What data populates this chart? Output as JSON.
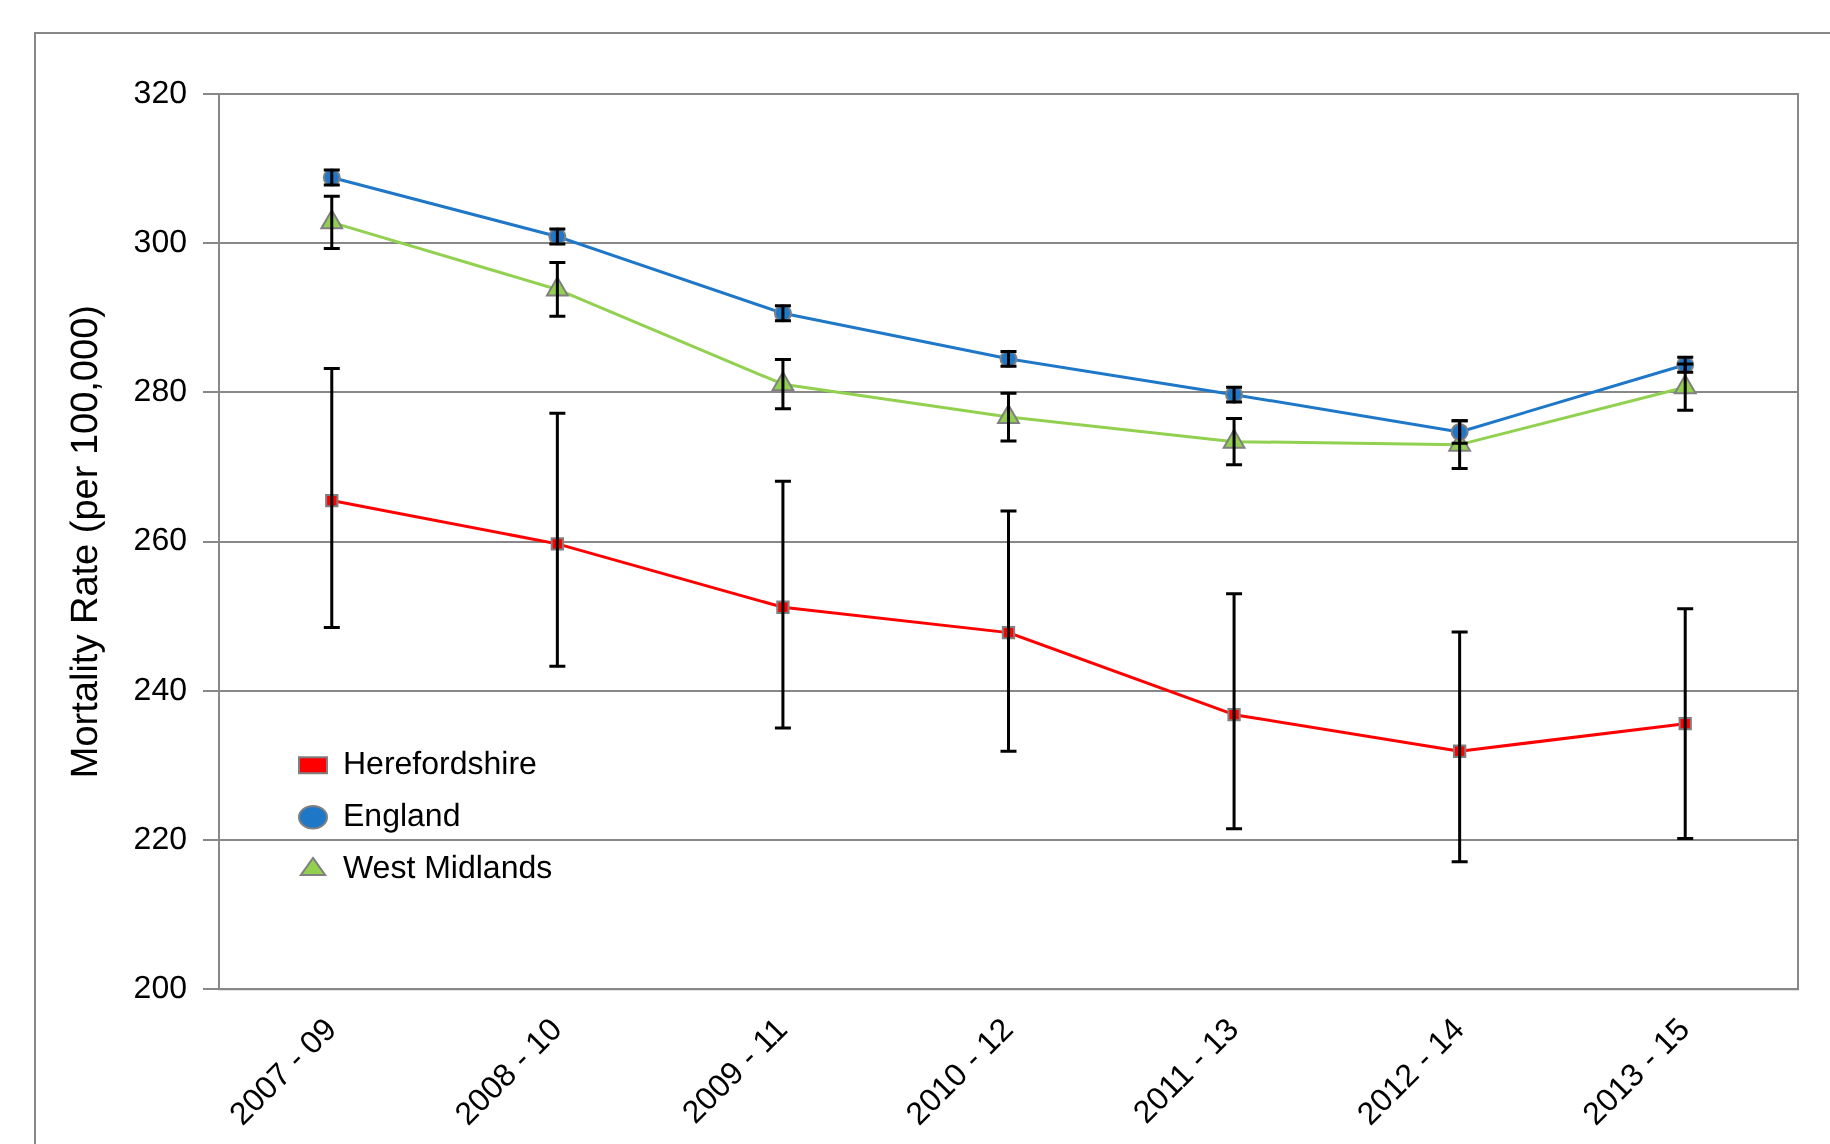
{
  "chart_data": {
    "type": "line",
    "ylabel": "Mortality Rate (per 100,000)",
    "categories": [
      "2007 - 09",
      "2008 - 10",
      "2009 - 11",
      "2010 - 12",
      "2011 - 13",
      "2012 - 14",
      "2013 - 15"
    ],
    "series": [
      {
        "name": "Herefordshire",
        "color": "#ff0000",
        "marker": "square",
        "values": [
          265.5,
          259.7,
          251.2,
          247.8,
          236.8,
          231.9,
          235.6
        ],
        "errors": [
          [
            248.5,
            283.2
          ],
          [
            243.3,
            277.2
          ],
          [
            235.0,
            268.1
          ],
          [
            231.9,
            264.1
          ],
          [
            221.5,
            253.0
          ],
          [
            217.1,
            247.9
          ],
          [
            220.2,
            251.0
          ]
        ]
      },
      {
        "name": "England",
        "color": "#1f77c8",
        "marker": "circle",
        "values": [
          308.8,
          300.9,
          290.6,
          284.5,
          279.7,
          274.7,
          283.7
        ],
        "errors": [
          1,
          1,
          1,
          1,
          1,
          1.5,
          1
        ]
      },
      {
        "name": "West Midlands",
        "color": "#92d050",
        "marker": "triangle",
        "values": [
          302.8,
          293.8,
          281.1,
          276.7,
          273.4,
          273.0,
          280.7
        ],
        "errors": [
          3.5,
          3.6,
          3.3,
          3.2,
          3.1,
          3.2,
          3.1
        ]
      }
    ],
    "ylim": [
      200,
      320
    ],
    "yticks": [
      200,
      220,
      240,
      260,
      280,
      300,
      320
    ],
    "grid": "y",
    "legend": "bottom left"
  }
}
